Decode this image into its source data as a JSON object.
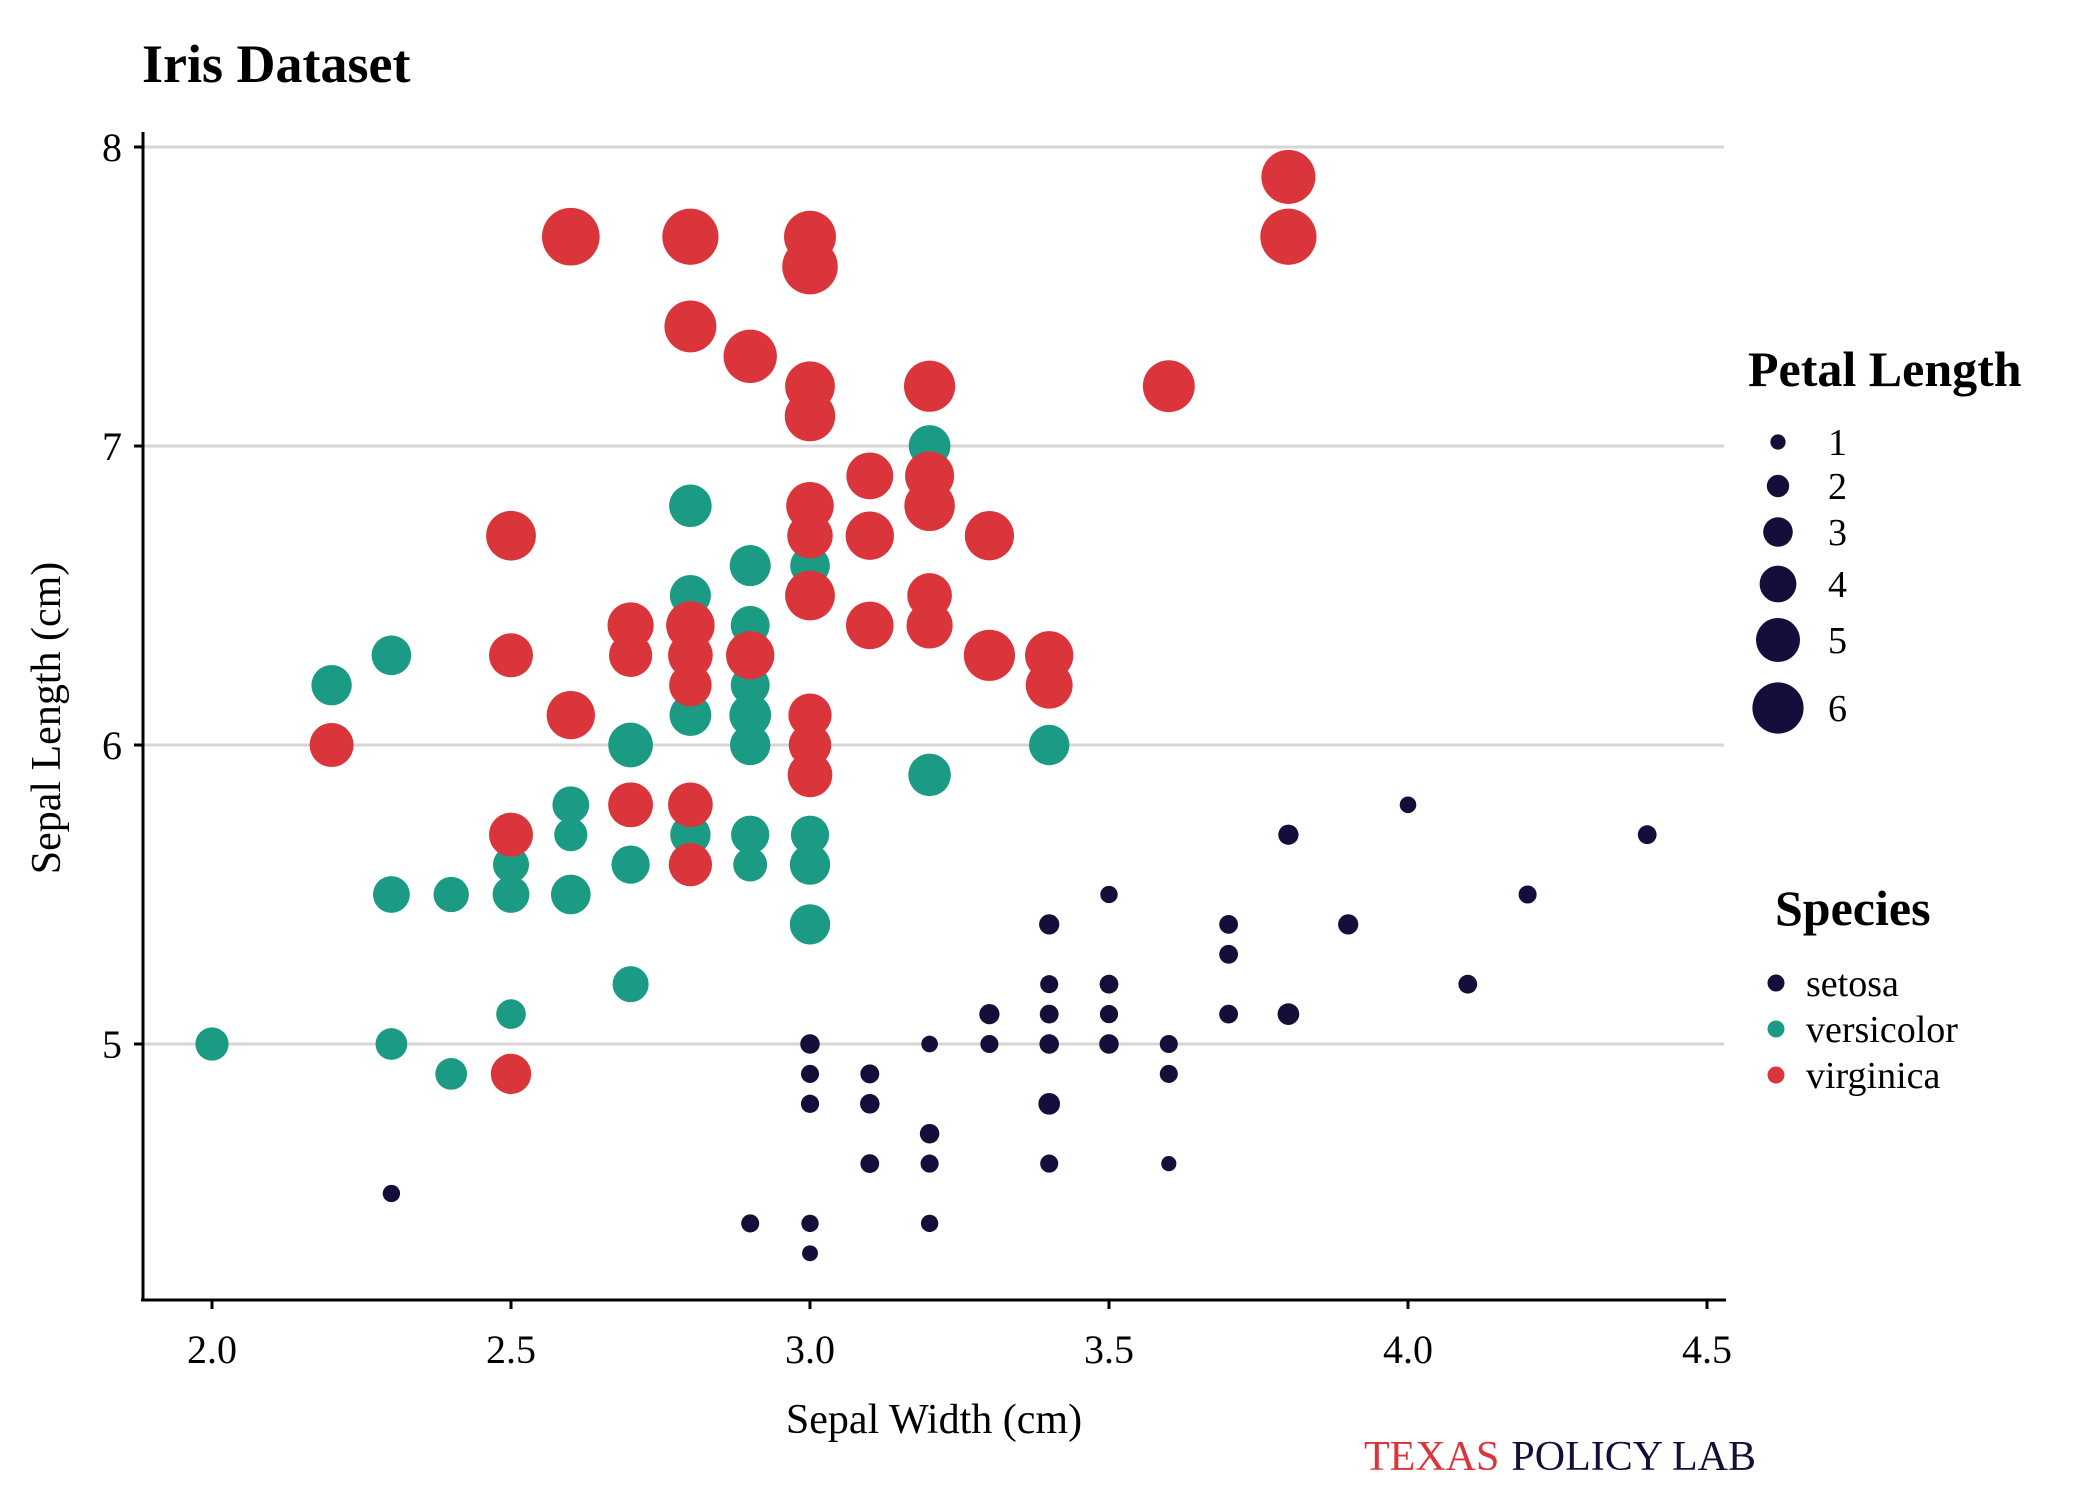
{
  "title": "Iris Dataset",
  "caption": {
    "part1": "TEXAS",
    "part2": "POLICY LAB"
  },
  "colors": {
    "setosa": "#140f3a",
    "versicolor": "#1b9b84",
    "virginica": "#db353c",
    "caption_red": "#db353c",
    "caption_navy": "#140f3a",
    "grid": "#d6d6d6",
    "axis": "#000000"
  },
  "chart_data": {
    "type": "scatter",
    "title": "Iris Dataset",
    "xlabel": "Sepal Width (cm)",
    "ylabel": "Sepal Length (cm)",
    "xlim": [
      1.9,
      4.5
    ],
    "ylim": [
      4.2,
      8.05
    ],
    "xticks": [
      "2.0",
      "2.5",
      "3.0",
      "3.5",
      "4.0",
      "4.5"
    ],
    "yticks": [
      "5",
      "6",
      "7",
      "8"
    ],
    "grid": "horizontal major",
    "size_legend": {
      "title": "Petal Length",
      "values": [
        1,
        2,
        3,
        4,
        5,
        6
      ],
      "labels": [
        "1",
        "2",
        "3",
        "4",
        "5",
        "6"
      ],
      "position": "right"
    },
    "color_legend": {
      "title": "Species",
      "labels": [
        "setosa",
        "versicolor",
        "virginica"
      ],
      "position": "right"
    },
    "series": [
      {
        "name": "setosa",
        "points": [
          [
            3.5,
            5.1,
            1.4
          ],
          [
            3.0,
            4.9,
            1.4
          ],
          [
            3.2,
            4.7,
            1.3
          ],
          [
            3.1,
            4.6,
            1.5
          ],
          [
            3.6,
            5.0,
            1.4
          ],
          [
            3.9,
            5.4,
            1.7
          ],
          [
            3.4,
            4.6,
            1.4
          ],
          [
            3.4,
            5.0,
            1.5
          ],
          [
            2.9,
            4.4,
            1.4
          ],
          [
            3.1,
            4.9,
            1.5
          ],
          [
            3.7,
            5.4,
            1.5
          ],
          [
            3.4,
            4.8,
            1.6
          ],
          [
            3.0,
            4.8,
            1.4
          ],
          [
            3.0,
            4.3,
            1.1
          ],
          [
            4.0,
            5.8,
            1.2
          ],
          [
            4.4,
            5.7,
            1.5
          ],
          [
            3.9,
            5.4,
            1.3
          ],
          [
            3.5,
            5.1,
            1.4
          ],
          [
            3.8,
            5.7,
            1.7
          ],
          [
            3.8,
            5.1,
            1.5
          ],
          [
            3.4,
            5.4,
            1.7
          ],
          [
            3.7,
            5.1,
            1.5
          ],
          [
            3.6,
            4.6,
            1.0
          ],
          [
            3.3,
            5.1,
            1.7
          ],
          [
            3.4,
            4.8,
            1.9
          ],
          [
            3.0,
            5.0,
            1.6
          ],
          [
            3.4,
            5.0,
            1.6
          ],
          [
            3.5,
            5.2,
            1.5
          ],
          [
            3.4,
            5.2,
            1.4
          ],
          [
            3.2,
            4.7,
            1.6
          ],
          [
            3.1,
            4.8,
            1.6
          ],
          [
            3.4,
            5.4,
            1.5
          ],
          [
            4.1,
            5.2,
            1.5
          ],
          [
            4.2,
            5.5,
            1.4
          ],
          [
            3.1,
            4.9,
            1.5
          ],
          [
            3.2,
            5.0,
            1.2
          ],
          [
            3.5,
            5.5,
            1.3
          ],
          [
            3.6,
            4.9,
            1.4
          ],
          [
            3.0,
            4.4,
            1.3
          ],
          [
            3.4,
            5.1,
            1.5
          ],
          [
            3.5,
            5.0,
            1.3
          ],
          [
            2.3,
            4.5,
            1.3
          ],
          [
            3.2,
            4.4,
            1.3
          ],
          [
            3.5,
            5.0,
            1.6
          ],
          [
            3.8,
            5.1,
            1.9
          ],
          [
            3.0,
            4.8,
            1.4
          ],
          [
            3.8,
            5.1,
            1.6
          ],
          [
            3.2,
            4.6,
            1.4
          ],
          [
            3.7,
            5.3,
            1.5
          ],
          [
            3.3,
            5.0,
            1.4
          ]
        ]
      },
      {
        "name": "versicolor",
        "points": [
          [
            3.2,
            7.0,
            4.7
          ],
          [
            3.2,
            6.4,
            4.5
          ],
          [
            3.1,
            6.9,
            4.9
          ],
          [
            2.3,
            5.5,
            4.0
          ],
          [
            2.8,
            6.5,
            4.6
          ],
          [
            2.8,
            5.7,
            4.5
          ],
          [
            3.3,
            6.3,
            4.7
          ],
          [
            2.4,
            4.9,
            3.3
          ],
          [
            2.9,
            6.6,
            4.6
          ],
          [
            2.7,
            5.2,
            3.9
          ],
          [
            2.0,
            5.0,
            3.5
          ],
          [
            3.0,
            5.9,
            4.2
          ],
          [
            2.2,
            6.0,
            4.0
          ],
          [
            2.9,
            6.1,
            4.7
          ],
          [
            2.9,
            5.6,
            3.6
          ],
          [
            3.1,
            6.7,
            4.4
          ],
          [
            3.0,
            5.6,
            4.5
          ],
          [
            2.7,
            5.8,
            4.1
          ],
          [
            2.2,
            6.2,
            4.5
          ],
          [
            2.5,
            5.6,
            3.9
          ],
          [
            3.2,
            5.9,
            4.8
          ],
          [
            2.8,
            6.1,
            4.0
          ],
          [
            2.5,
            6.3,
            4.9
          ],
          [
            2.8,
            6.1,
            4.7
          ],
          [
            2.9,
            6.4,
            4.3
          ],
          [
            3.0,
            6.6,
            4.4
          ],
          [
            2.8,
            6.8,
            4.8
          ],
          [
            3.0,
            6.7,
            5.0
          ],
          [
            2.9,
            6.0,
            4.5
          ],
          [
            2.6,
            5.7,
            3.5
          ],
          [
            2.4,
            5.5,
            3.8
          ],
          [
            2.4,
            5.5,
            3.7
          ],
          [
            2.7,
            5.8,
            3.9
          ],
          [
            2.7,
            6.0,
            5.1
          ],
          [
            3.0,
            5.4,
            4.5
          ],
          [
            3.4,
            6.0,
            4.5
          ],
          [
            3.1,
            6.7,
            4.7
          ],
          [
            2.3,
            6.3,
            4.4
          ],
          [
            3.0,
            5.6,
            4.1
          ],
          [
            2.5,
            5.5,
            4.0
          ],
          [
            2.6,
            5.5,
            4.4
          ],
          [
            3.0,
            6.1,
            4.6
          ],
          [
            2.6,
            5.8,
            4.0
          ],
          [
            2.3,
            5.0,
            3.3
          ],
          [
            2.7,
            5.6,
            4.2
          ],
          [
            3.0,
            5.7,
            4.2
          ],
          [
            2.9,
            5.7,
            4.2
          ],
          [
            2.9,
            6.2,
            4.3
          ],
          [
            2.5,
            5.1,
            3.0
          ],
          [
            2.8,
            5.7,
            4.1
          ]
        ]
      },
      {
        "name": "virginica",
        "points": [
          [
            3.3,
            6.3,
            6.0
          ],
          [
            2.7,
            5.8,
            5.1
          ],
          [
            3.0,
            7.1,
            5.9
          ],
          [
            2.9,
            6.3,
            5.6
          ],
          [
            3.0,
            6.5,
            5.8
          ],
          [
            3.0,
            7.6,
            6.6
          ],
          [
            2.5,
            4.9,
            4.5
          ],
          [
            2.9,
            7.3,
            6.3
          ],
          [
            2.5,
            6.7,
            5.8
          ],
          [
            3.6,
            7.2,
            6.1
          ],
          [
            3.2,
            6.5,
            5.1
          ],
          [
            2.7,
            6.4,
            5.3
          ],
          [
            3.0,
            6.8,
            5.5
          ],
          [
            2.5,
            5.7,
            5.0
          ],
          [
            2.8,
            5.8,
            5.1
          ],
          [
            3.2,
            6.4,
            5.3
          ],
          [
            3.0,
            6.5,
            5.5
          ],
          [
            3.8,
            7.7,
            6.7
          ],
          [
            2.6,
            7.7,
            6.9
          ],
          [
            2.2,
            6.0,
            5.0
          ],
          [
            3.2,
            6.9,
            5.7
          ],
          [
            2.8,
            5.6,
            4.9
          ],
          [
            2.8,
            7.7,
            6.7
          ],
          [
            2.7,
            6.3,
            4.9
          ],
          [
            3.3,
            6.7,
            5.7
          ],
          [
            3.2,
            7.2,
            6.0
          ],
          [
            2.8,
            6.2,
            4.8
          ],
          [
            3.0,
            6.1,
            4.9
          ],
          [
            2.8,
            6.4,
            5.6
          ],
          [
            3.0,
            7.2,
            5.8
          ],
          [
            2.8,
            7.4,
            6.1
          ],
          [
            3.8,
            7.9,
            6.4
          ],
          [
            2.8,
            6.4,
            5.6
          ],
          [
            2.8,
            6.3,
            5.1
          ],
          [
            2.6,
            6.1,
            5.6
          ],
          [
            3.0,
            7.7,
            6.1
          ],
          [
            3.4,
            6.3,
            5.6
          ],
          [
            3.1,
            6.4,
            5.5
          ],
          [
            3.0,
            6.0,
            4.8
          ],
          [
            3.1,
            6.9,
            5.4
          ],
          [
            3.1,
            6.7,
            5.6
          ],
          [
            3.1,
            6.9,
            5.1
          ],
          [
            2.7,
            5.8,
            5.1
          ],
          [
            3.2,
            6.8,
            5.9
          ],
          [
            3.3,
            6.7,
            5.7
          ],
          [
            3.0,
            6.7,
            5.2
          ],
          [
            2.5,
            6.3,
            5.0
          ],
          [
            3.0,
            6.5,
            5.2
          ],
          [
            3.4,
            6.2,
            5.4
          ],
          [
            3.0,
            5.9,
            5.1
          ]
        ]
      }
    ]
  }
}
